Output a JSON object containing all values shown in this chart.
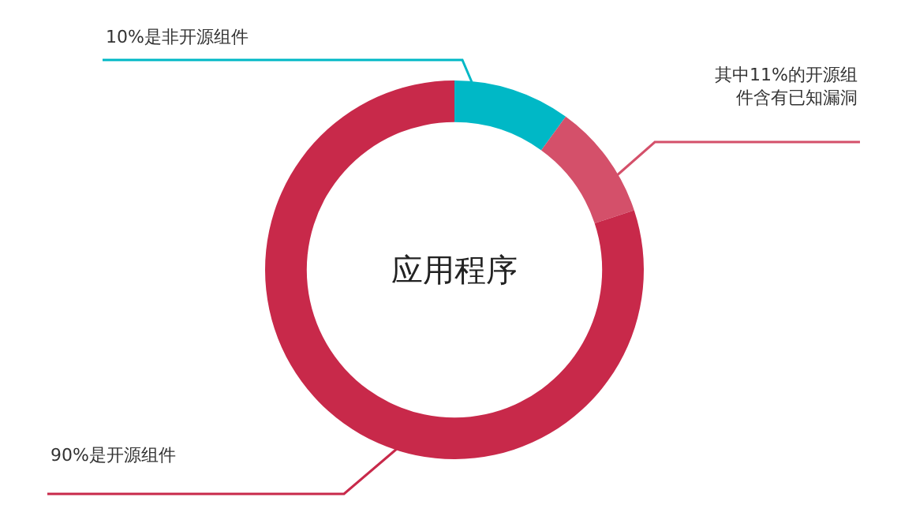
{
  "chart_data": {
    "type": "donut",
    "title": "应用程序",
    "categories": [
      null,
      null,
      null
    ],
    "values": [
      10,
      9.9,
      80.1
    ],
    "colors": [
      "#00b8c6",
      "#d4506a",
      "#c8294a"
    ],
    "annotations": [
      "10%是非开源组件",
      "其中11%的开源组件含有已知漏洞",
      "90%是开源组件"
    ],
    "legend": false
  }
}
